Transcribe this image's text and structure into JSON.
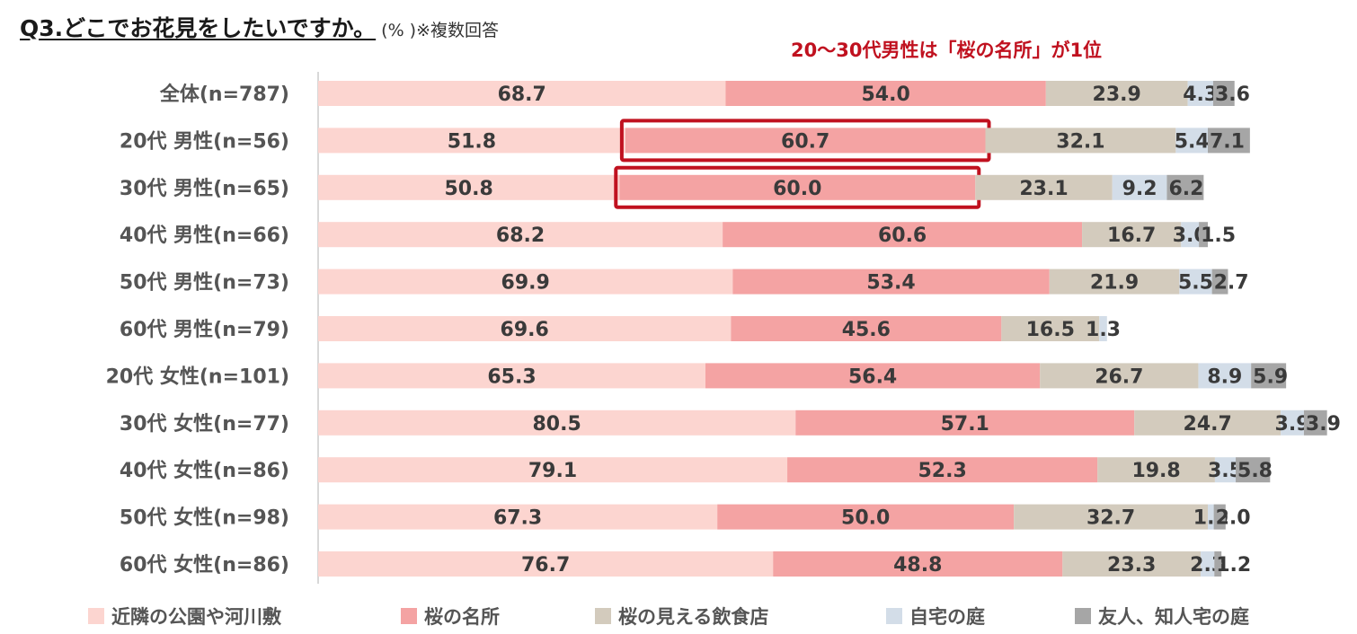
{
  "chart_data": {
    "type": "bar",
    "orientation": "horizontal",
    "stacked": true,
    "title": "Q3.どこでお花見をしたいですか。",
    "subtitle": "(% )※複数回答",
    "annotation": "20～30代男性は「桜の名所」が1位",
    "highlight": {
      "series": "桜の名所",
      "categories": [
        "20代 男性(n=56)",
        "30代 男性(n=65)"
      ],
      "color": "#c0111f"
    },
    "legend_position": "bottom",
    "grid": false,
    "categories": [
      "全体(n=787)",
      "20代 男性(n=56)",
      "30代 男性(n=65)",
      "40代 男性(n=66)",
      "50代 男性(n=73)",
      "60代 男性(n=79)",
      "20代 女性(n=101)",
      "30代 女性(n=77)",
      "40代 女性(n=86)",
      "50代 女性(n=98)",
      "60代 女性(n=86)"
    ],
    "series": [
      {
        "name": "近隣の公園や河川敷",
        "color": "#fcd5d0",
        "values": [
          68.7,
          51.8,
          50.8,
          68.2,
          69.9,
          69.6,
          65.3,
          80.5,
          79.1,
          67.3,
          76.7
        ],
        "labels": [
          "68.7",
          "51.8",
          "50.8",
          "68.2",
          "69.9",
          "69.6",
          "65.3",
          "80.5",
          "79.1",
          "67.3",
          "76.7"
        ]
      },
      {
        "name": "桜の名所",
        "color": "#f4a3a3",
        "values": [
          54.0,
          60.7,
          60.0,
          60.6,
          53.4,
          45.6,
          56.4,
          57.1,
          52.3,
          50.0,
          48.8
        ],
        "labels": [
          "54.0",
          "60.7",
          "60.0",
          "60.6",
          "53.4",
          "45.6",
          "56.4",
          "57.1",
          "52.3",
          "50.0",
          "48.8"
        ]
      },
      {
        "name": "桜の見える飲食店",
        "color": "#d3cbbd",
        "values": [
          23.9,
          32.1,
          23.1,
          16.7,
          21.9,
          16.5,
          26.7,
          24.7,
          19.8,
          32.7,
          23.3
        ],
        "labels": [
          "23.9",
          "32.1",
          "23.1",
          "16.7",
          "21.9",
          "16.5",
          "26.7",
          "24.7",
          "19.8",
          "32.7",
          "23.3"
        ]
      },
      {
        "name": "自宅の庭",
        "color": "#d3dde8",
        "values": [
          4.3,
          5.4,
          9.2,
          3.0,
          5.5,
          1.3,
          8.9,
          3.9,
          3.5,
          1.0,
          2.3
        ],
        "labels": [
          "4.3",
          "5.4",
          "9.2",
          "3.0",
          "5.5",
          "1.3",
          "8.9",
          "3.9",
          "3.5",
          "1.0",
          "2.3"
        ]
      },
      {
        "name": "友人、知人宅の庭",
        "color": "#a6a6a6",
        "values": [
          3.6,
          7.1,
          6.2,
          1.5,
          2.7,
          0,
          5.9,
          3.9,
          5.8,
          2.0,
          1.2
        ],
        "labels": [
          "3.6",
          "7.1",
          "6.2",
          "1.5",
          "2.7",
          "",
          "5.9",
          "3.9",
          "5.8",
          "2.0",
          "1.2"
        ]
      }
    ]
  }
}
